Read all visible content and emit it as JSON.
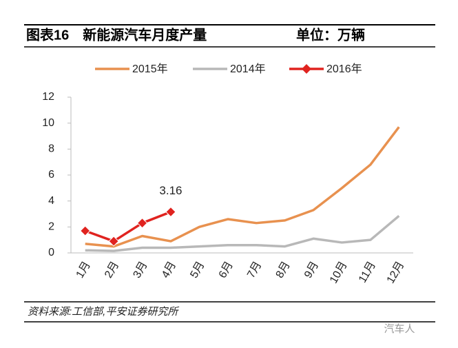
{
  "chart_data": {
    "type": "line",
    "title": "图表16　新能源汽车月度产量",
    "subtitle": "单位：万辆",
    "categories": [
      "1月",
      "2月",
      "3月",
      "4月",
      "5月",
      "6月",
      "7月",
      "8月",
      "9月",
      "10月",
      "11月",
      "12月"
    ],
    "series": [
      {
        "name": "2015年",
        "color": "#e8914f",
        "values": [
          0.7,
          0.5,
          1.3,
          0.9,
          2.0,
          2.6,
          2.3,
          2.5,
          3.3,
          5.0,
          6.8,
          9.7
        ]
      },
      {
        "name": "2014年",
        "color": "#b8b8b8",
        "values": [
          0.2,
          0.15,
          0.4,
          0.4,
          0.5,
          0.6,
          0.6,
          0.5,
          1.1,
          0.8,
          1.0,
          2.85
        ]
      },
      {
        "name": "2016年",
        "color": "#e0231f",
        "marker": "diamond",
        "values": [
          1.7,
          0.9,
          2.3,
          3.16,
          null,
          null,
          null,
          null,
          null,
          null,
          null,
          null
        ]
      }
    ],
    "ylim": [
      0,
      12
    ],
    "yticks": [
      0,
      2,
      4,
      6,
      8,
      10,
      12
    ],
    "source": "资料来源:工信部,平安证券研究所",
    "watermark": "汽车人"
  }
}
